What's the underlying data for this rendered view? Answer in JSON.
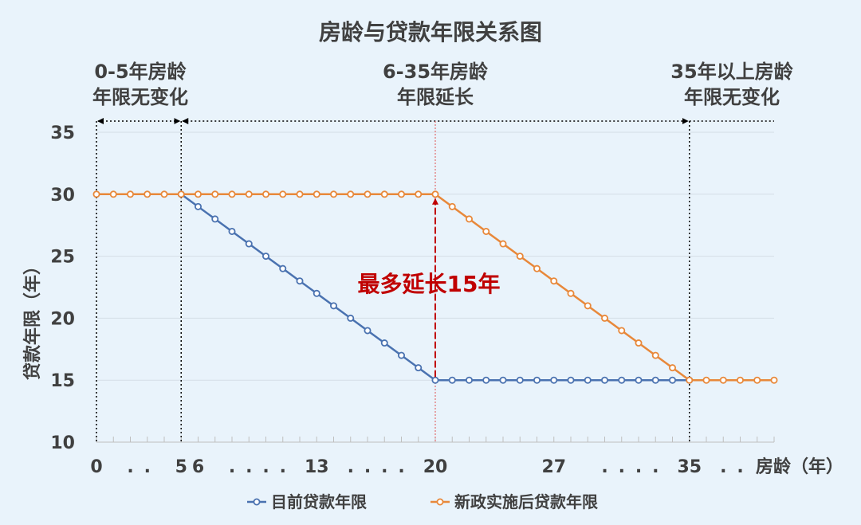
{
  "chart_data": {
    "type": "line",
    "title": "房龄与贷款年限关系图",
    "xlabel": "房龄（年）",
    "ylabel": "贷款年限（年）",
    "xlim": [
      0,
      40
    ],
    "ylim": [
      10,
      35
    ],
    "y_ticks": [
      10,
      15,
      20,
      25,
      30,
      35
    ],
    "x_tick_labels": [
      {
        "x": 0,
        "label": "0"
      },
      {
        "x": 2,
        "label": "."
      },
      {
        "x": 3,
        "label": "."
      },
      {
        "x": 5,
        "label": "5"
      },
      {
        "x": 6,
        "label": "6"
      },
      {
        "x": 8,
        "label": "."
      },
      {
        "x": 9,
        "label": "."
      },
      {
        "x": 10,
        "label": "."
      },
      {
        "x": 11,
        "label": "."
      },
      {
        "x": 13,
        "label": "13"
      },
      {
        "x": 15,
        "label": "."
      },
      {
        "x": 16,
        "label": "."
      },
      {
        "x": 17,
        "label": "."
      },
      {
        "x": 18,
        "label": "."
      },
      {
        "x": 20,
        "label": "20"
      },
      {
        "x": 27,
        "label": "27"
      },
      {
        "x": 30,
        "label": "."
      },
      {
        "x": 31,
        "label": "."
      },
      {
        "x": 32,
        "label": "."
      },
      {
        "x": 33,
        "label": "."
      },
      {
        "x": 35,
        "label": "35"
      },
      {
        "x": 37,
        "label": "."
      },
      {
        "x": 38,
        "label": "."
      }
    ],
    "grid": "horizontal",
    "legend": "bottom",
    "series": [
      {
        "name": "目前贷款年限",
        "color": "#4a72b0",
        "x": [
          5,
          6,
          7,
          8,
          9,
          10,
          11,
          12,
          13,
          14,
          15,
          16,
          17,
          18,
          19,
          20,
          21,
          22,
          23,
          24,
          25,
          26,
          27,
          28,
          29,
          30,
          31,
          32,
          33,
          34,
          35
        ],
        "values": [
          30,
          29,
          28,
          27,
          26,
          25,
          24,
          23,
          22,
          21,
          20,
          19,
          18,
          17,
          16,
          15,
          15,
          15,
          15,
          15,
          15,
          15,
          15,
          15,
          15,
          15,
          15,
          15,
          15,
          15,
          15
        ]
      },
      {
        "name": "新政实施后贷款年限",
        "color": "#e8883a",
        "x": [
          0,
          1,
          2,
          3,
          4,
          5,
          6,
          7,
          8,
          9,
          10,
          11,
          12,
          13,
          14,
          15,
          16,
          17,
          18,
          19,
          20,
          21,
          22,
          23,
          24,
          25,
          26,
          27,
          28,
          29,
          30,
          31,
          32,
          33,
          34,
          35,
          36,
          37,
          38,
          39,
          40
        ],
        "values": [
          30,
          30,
          30,
          30,
          30,
          30,
          30,
          30,
          30,
          30,
          30,
          30,
          30,
          30,
          30,
          30,
          30,
          30,
          30,
          30,
          30,
          29,
          28,
          27,
          26,
          25,
          24,
          23,
          22,
          21,
          20,
          19,
          18,
          17,
          16,
          15,
          15,
          15,
          15,
          15,
          15
        ]
      }
    ],
    "zones": [
      {
        "lines": [
          "0-5年房龄",
          "年限无变化"
        ],
        "from": 0,
        "to": 5
      },
      {
        "lines": [
          "6-35年房龄",
          "年限延长"
        ],
        "from": 5,
        "to": 35
      },
      {
        "lines": [
          "35年以上房龄",
          "年限无变化"
        ],
        "from": 35,
        "to": 40
      }
    ],
    "dividers": [
      5,
      20,
      35
    ],
    "annotation": {
      "text": "最多延长15年",
      "x": 20,
      "from": 15,
      "to": 30,
      "color": "#c00000"
    }
  }
}
